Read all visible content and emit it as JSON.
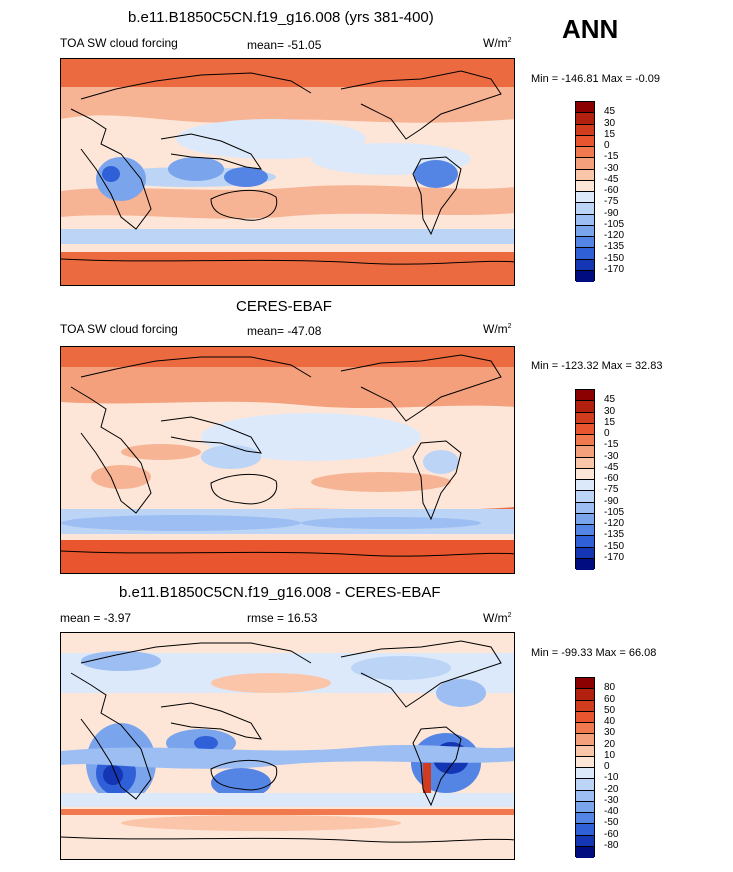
{
  "season": "ANN",
  "panels": [
    {
      "title": "b.e11.B1850C5CN.f19_g16.008 (yrs 381-400)",
      "left_label": "TOA SW cloud forcing",
      "center_label": "mean= -51.05",
      "units_base": "W/m",
      "units_exp": "2",
      "minmax": "Min = -146.81 Max =  -0.09"
    },
    {
      "title": "CERES-EBAF",
      "left_label": "TOA SW cloud forcing",
      "center_label": "mean= -47.08",
      "units_base": "W/m",
      "units_exp": "2",
      "minmax": "Min = -123.32 Max =  32.83"
    },
    {
      "title": "b.e11.B1850C5CN.f19_g16.008 - CERES-EBAF",
      "left_label": "mean =  -3.97",
      "center_label": "rmse =  16.53",
      "units_base": "W/m",
      "units_exp": "2",
      "minmax": "Min = -99.33 Max =  66.08"
    }
  ],
  "colorbars": {
    "absolute": {
      "ticks": [
        "45",
        "30",
        "15",
        "0",
        "-15",
        "-30",
        "-45",
        "-60",
        "-75",
        "-90",
        "-105",
        "-120",
        "-135",
        "-150",
        "-170"
      ],
      "colors": [
        "#8b0000",
        "#b22010",
        "#d23c1e",
        "#e8552e",
        "#f07a4e",
        "#f5a07c",
        "#fac5a8",
        "#fde6d8",
        "#dce9fa",
        "#bcd4f6",
        "#9cbef2",
        "#7aa4ec",
        "#5585e4",
        "#3060d8",
        "#1435b4",
        "#000c80"
      ]
    },
    "difference": {
      "ticks": [
        "80",
        "60",
        "50",
        "40",
        "30",
        "20",
        "10",
        "0",
        "-10",
        "-20",
        "-30",
        "-40",
        "-50",
        "-60",
        "-80"
      ],
      "colors": [
        "#8b0000",
        "#b22010",
        "#d23c1e",
        "#e8552e",
        "#f07a4e",
        "#f5a07c",
        "#fac5a8",
        "#fde6d8",
        "#dce9fa",
        "#bcd4f6",
        "#9cbef2",
        "#7aa4ec",
        "#5585e4",
        "#3060d8",
        "#1435b4",
        "#000c80"
      ]
    }
  }
}
